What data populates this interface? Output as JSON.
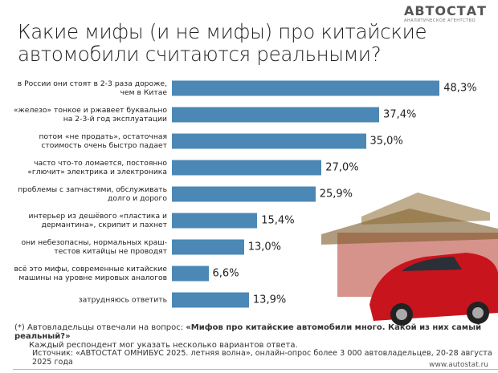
{
  "brand": {
    "name": "АВТОСТАТ",
    "tagline": "АНАЛИТИЧЕСКОЕ АГЕНТСТВО"
  },
  "chart_data": {
    "type": "bar",
    "orientation": "horizontal",
    "title": [
      "Какие мифы (и не мифы) про китайские",
      "автомобили считаются реальными?"
    ],
    "categories": [
      "в России они стоят в 2-3 раза дороже, чем в Китае",
      "«железо» тонкое и ржавеет буквально на 2-3-й год эксплуатации",
      "потом «не продать», остаточная стоимость очень быстро падает",
      "часто что-то ломается, постоянно «глючит» электрика и электроника",
      "проблемы с запчастями, обслуживать долго и дорого",
      "интерьер из дешёвого «пластика и дермантина», скрипит и пахнет",
      "они небезопасны, нормальных краш-тестов китайцы не проводят",
      "всё это мифы, современные китайские машины на уровне мировых аналогов",
      "затрудняюсь ответить"
    ],
    "values": [
      48.3,
      37.4,
      35.0,
      27.0,
      25.9,
      15.4,
      13.0,
      6.6,
      13.9
    ],
    "value_labels": [
      "48,3%",
      "37,4%",
      "35,0%",
      "27,0%",
      "25,9%",
      "15,4%",
      "13,0%",
      "6,6%",
      "13,9%"
    ],
    "color": "#4b88b5"
  },
  "footnote": [
    "(*) Автовладельцы отвечали на вопрос:",
    "«Мифов про китайские автомобили много. Какой из них самый реальный?»",
    "Каждый респондент мог указать несколько вариантов ответа."
  ],
  "source": "Источник: «АВТОСТАТ ОМНИБУС 2025. летняя волна», онлайн-опрос более 3 000 автовладельцев, 20-28 августа 2025 года",
  "website": "www.autostat.ru"
}
